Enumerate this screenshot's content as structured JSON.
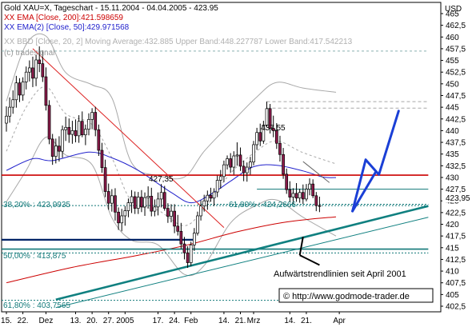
{
  "chart_data": {
    "type": "candlestick",
    "header": {
      "title": "Gold XAU=X, Tageschart - 15.11.2004 - 04.04.2005 - 423.95",
      "ema200": "XX EMA [Close, 200]:421.598659",
      "ema50": "XX EMA(2) [Close, 50]:429.971568",
      "bbd": "XX BBD [Close, 20, 2] Moving Average:432.885  Upper Band:448.227787  Lower Band:417.542213",
      "watermark": "(c) tradesignal"
    },
    "y_axis": {
      "unit": "USD",
      "min": 402.5,
      "max": 465,
      "ticks": [
        402.5,
        405,
        407.5,
        410,
        412.5,
        415,
        417.5,
        420,
        422.5,
        425,
        427.5,
        430,
        432.5,
        435,
        437.5,
        440,
        442.5,
        445,
        447.5,
        450,
        452.5,
        455,
        457.5,
        460,
        462.5,
        465
      ],
      "tick_labels": [
        "402,5",
        "405",
        "407,5",
        "410",
        "412,5",
        "415",
        "417,5",
        "420",
        "422,5",
        "425",
        "427,5",
        "430",
        "432,5",
        "435",
        "437,5",
        "440",
        "442,5",
        "445",
        "447,5",
        "450",
        "452,5",
        "455",
        "457,5",
        "460",
        "462,5",
        "465"
      ],
      "last_price": 423.95,
      "last_price_label": "423,95"
    },
    "x_axis": {
      "labels": [
        "15.",
        "22.",
        "Dez",
        "13.",
        "20.",
        "27.",
        "2005",
        "17.",
        "24.",
        "Feb",
        "14.",
        "21.",
        "Mrz",
        "14.",
        "21.",
        "Apr"
      ],
      "label_bar_index": [
        0,
        5,
        12,
        21,
        26,
        31,
        36,
        46,
        51,
        56,
        66,
        71,
        75,
        86,
        91,
        101
      ]
    },
    "candles": [
      {
        "o": 441.6,
        "h": 445.2,
        "l": 439.8,
        "c": 443.1
      },
      {
        "o": 443.1,
        "h": 447.1,
        "l": 441.7,
        "c": 445.0
      },
      {
        "o": 445.0,
        "h": 448.6,
        "l": 443.6,
        "c": 446.6
      },
      {
        "o": 446.6,
        "h": 451.7,
        "l": 444.9,
        "c": 450.2
      },
      {
        "o": 450.2,
        "h": 451.2,
        "l": 446.1,
        "c": 447.6
      },
      {
        "o": 447.6,
        "h": 451.4,
        "l": 446.4,
        "c": 450.4
      },
      {
        "o": 450.4,
        "h": 453.7,
        "l": 448.8,
        "c": 452.5
      },
      {
        "o": 452.5,
        "h": 455.0,
        "l": 450.5,
        "c": 453.4
      },
      {
        "o": 453.4,
        "h": 455.8,
        "l": 449.3,
        "c": 451.2
      },
      {
        "o": 451.2,
        "h": 456.2,
        "l": 449.5,
        "c": 455.1
      },
      {
        "o": 455.1,
        "h": 458.0,
        "l": 452.5,
        "c": 454.3
      },
      {
        "o": 454.3,
        "h": 457.1,
        "l": 450.4,
        "c": 451.5
      },
      {
        "o": 451.5,
        "h": 453.5,
        "l": 444.3,
        "c": 445.4
      },
      {
        "o": 445.4,
        "h": 446.5,
        "l": 437.1,
        "c": 438.2
      },
      {
        "o": 438.2,
        "h": 439.3,
        "l": 432.7,
        "c": 434.5
      },
      {
        "o": 434.5,
        "h": 438.3,
        "l": 433.0,
        "c": 436.7
      },
      {
        "o": 436.7,
        "h": 438.8,
        "l": 433.4,
        "c": 435.6
      },
      {
        "o": 435.6,
        "h": 441.1,
        "l": 434.2,
        "c": 440.2
      },
      {
        "o": 440.2,
        "h": 443.0,
        "l": 437.8,
        "c": 440.7
      },
      {
        "o": 440.7,
        "h": 442.6,
        "l": 437.4,
        "c": 439.2
      },
      {
        "o": 439.2,
        "h": 442.1,
        "l": 437.2,
        "c": 440.0
      },
      {
        "o": 440.0,
        "h": 442.4,
        "l": 437.5,
        "c": 438.9
      },
      {
        "o": 438.9,
        "h": 443.3,
        "l": 437.4,
        "c": 442.0
      },
      {
        "o": 442.0,
        "h": 444.1,
        "l": 438.6,
        "c": 439.1
      },
      {
        "o": 439.1,
        "h": 441.3,
        "l": 436.9,
        "c": 440.3
      },
      {
        "o": 440.3,
        "h": 443.7,
        "l": 439.0,
        "c": 442.4
      },
      {
        "o": 442.4,
        "h": 444.8,
        "l": 440.3,
        "c": 443.9
      },
      {
        "o": 443.9,
        "h": 445.1,
        "l": 438.8,
        "c": 440.2
      },
      {
        "o": 440.2,
        "h": 441.3,
        "l": 434.6,
        "c": 435.8
      },
      {
        "o": 435.8,
        "h": 437.4,
        "l": 431.0,
        "c": 432.1
      },
      {
        "o": 432.1,
        "h": 433.8,
        "l": 425.8,
        "c": 427.0
      },
      {
        "o": 427.0,
        "h": 428.7,
        "l": 423.1,
        "c": 424.5
      },
      {
        "o": 424.5,
        "h": 427.5,
        "l": 422.7,
        "c": 426.1
      },
      {
        "o": 426.1,
        "h": 427.7,
        "l": 420.8,
        "c": 422.6
      },
      {
        "o": 422.6,
        "h": 423.6,
        "l": 418.8,
        "c": 420.3
      },
      {
        "o": 420.3,
        "h": 423.3,
        "l": 418.5,
        "c": 421.8
      },
      {
        "o": 421.8,
        "h": 423.9,
        "l": 419.7,
        "c": 422.9
      },
      {
        "o": 422.9,
        "h": 425.5,
        "l": 421.5,
        "c": 424.6
      },
      {
        "o": 424.6,
        "h": 427.3,
        "l": 422.4,
        "c": 425.9
      },
      {
        "o": 425.9,
        "h": 427.0,
        "l": 422.2,
        "c": 423.4
      },
      {
        "o": 423.4,
        "h": 426.9,
        "l": 422.2,
        "c": 425.8
      },
      {
        "o": 425.8,
        "h": 427.3,
        "l": 422.6,
        "c": 423.7
      },
      {
        "o": 423.7,
        "h": 426.8,
        "l": 421.8,
        "c": 425.7
      },
      {
        "o": 425.7,
        "h": 428.1,
        "l": 423.4,
        "c": 426.0
      },
      {
        "o": 426.0,
        "h": 427.8,
        "l": 421.7,
        "c": 422.8
      },
      {
        "o": 422.8,
        "h": 425.3,
        "l": 421.7,
        "c": 423.7
      },
      {
        "o": 423.7,
        "h": 426.8,
        "l": 421.9,
        "c": 425.4
      },
      {
        "o": 425.4,
        "h": 428.6,
        "l": 423.6,
        "c": 426.8
      },
      {
        "o": 426.8,
        "h": 428.2,
        "l": 422.9,
        "c": 423.4
      },
      {
        "o": 423.4,
        "h": 424.5,
        "l": 420.3,
        "c": 421.7
      },
      {
        "o": 421.7,
        "h": 424.3,
        "l": 420.4,
        "c": 422.8
      },
      {
        "o": 422.8,
        "h": 424.3,
        "l": 418.1,
        "c": 419.6
      },
      {
        "o": 419.6,
        "h": 422.0,
        "l": 417.6,
        "c": 418.5
      },
      {
        "o": 418.5,
        "h": 420.3,
        "l": 414.7,
        "c": 415.8
      },
      {
        "o": 415.8,
        "h": 417.3,
        "l": 412.5,
        "c": 413.9
      },
      {
        "o": 413.9,
        "h": 415.3,
        "l": 410.7,
        "c": 411.8
      },
      {
        "o": 411.8,
        "h": 416.3,
        "l": 411.1,
        "c": 415.6
      },
      {
        "o": 415.6,
        "h": 419.2,
        "l": 414.3,
        "c": 418.1
      },
      {
        "o": 418.1,
        "h": 422.7,
        "l": 417.6,
        "c": 421.8
      },
      {
        "o": 421.8,
        "h": 425.1,
        "l": 420.8,
        "c": 423.9
      },
      {
        "o": 423.9,
        "h": 426.3,
        "l": 422.7,
        "c": 425.0
      },
      {
        "o": 425.0,
        "h": 427.2,
        "l": 423.1,
        "c": 426.2
      },
      {
        "o": 426.2,
        "h": 427.8,
        "l": 424.8,
        "c": 425.6
      },
      {
        "o": 425.6,
        "h": 427.7,
        "l": 423.9,
        "c": 426.9
      },
      {
        "o": 426.9,
        "h": 430.4,
        "l": 425.8,
        "c": 429.4
      },
      {
        "o": 429.4,
        "h": 431.6,
        "l": 427.6,
        "c": 430.2
      },
      {
        "o": 430.2,
        "h": 433.6,
        "l": 429.0,
        "c": 432.7
      },
      {
        "o": 432.7,
        "h": 434.7,
        "l": 431.7,
        "c": 434.0
      },
      {
        "o": 434.0,
        "h": 435.2,
        "l": 431.0,
        "c": 432.2
      },
      {
        "o": 432.2,
        "h": 435.6,
        "l": 430.6,
        "c": 434.6
      },
      {
        "o": 434.6,
        "h": 437.5,
        "l": 432.5,
        "c": 434.8
      },
      {
        "o": 434.8,
        "h": 436.4,
        "l": 431.4,
        "c": 432.4
      },
      {
        "o": 432.4,
        "h": 433.6,
        "l": 429.2,
        "c": 431.0
      },
      {
        "o": 431.0,
        "h": 433.2,
        "l": 429.1,
        "c": 432.2
      },
      {
        "o": 432.2,
        "h": 434.4,
        "l": 430.6,
        "c": 433.3
      },
      {
        "o": 433.3,
        "h": 437.8,
        "l": 432.6,
        "c": 437.0
      },
      {
        "o": 437.0,
        "h": 440.6,
        "l": 435.9,
        "c": 439.6
      },
      {
        "o": 439.6,
        "h": 441.5,
        "l": 436.7,
        "c": 437.8
      },
      {
        "o": 437.8,
        "h": 442.1,
        "l": 437.2,
        "c": 441.2
      },
      {
        "o": 441.2,
        "h": 446.2,
        "l": 440.7,
        "c": 444.7
      },
      {
        "o": 444.7,
        "h": 445.7,
        "l": 439.4,
        "c": 440.5
      },
      {
        "o": 440.5,
        "h": 443.2,
        "l": 438.6,
        "c": 440.0
      },
      {
        "o": 440.0,
        "h": 441.6,
        "l": 436.1,
        "c": 437.3
      },
      {
        "o": 437.3,
        "h": 438.9,
        "l": 433.4,
        "c": 434.9
      },
      {
        "o": 434.9,
        "h": 436.3,
        "l": 429.7,
        "c": 430.7
      },
      {
        "o": 430.7,
        "h": 431.9,
        "l": 426.5,
        "c": 427.4
      },
      {
        "o": 427.4,
        "h": 429.2,
        "l": 424.7,
        "c": 425.8
      },
      {
        "o": 425.8,
        "h": 427.7,
        "l": 424.3,
        "c": 426.6
      },
      {
        "o": 426.6,
        "h": 428.8,
        "l": 424.8,
        "c": 425.6
      },
      {
        "o": 425.6,
        "h": 427.6,
        "l": 424.6,
        "c": 426.8
      },
      {
        "o": 426.8,
        "h": 428.5,
        "l": 424.3,
        "c": 425.4
      },
      {
        "o": 425.4,
        "h": 428.6,
        "l": 424.9,
        "c": 427.5
      },
      {
        "o": 427.5,
        "h": 429.8,
        "l": 426.2,
        "c": 428.6
      },
      {
        "o": 428.6,
        "h": 429.6,
        "l": 425.6,
        "c": 426.1
      },
      {
        "o": 426.1,
        "h": 426.9,
        "l": 422.8,
        "c": 424.0
      },
      {
        "o": 424.0,
        "h": 425.9,
        "l": 422.6,
        "c": 423.95
      }
    ],
    "indicators": {
      "ema50_color": "#2222cc",
      "ema200_color": "#cc0000",
      "bbd_color": "#a8a8a8",
      "ema50": [
        [
          0,
          431.5
        ],
        [
          8,
          434.0
        ],
        [
          14,
          433.6
        ],
        [
          25,
          435.4
        ],
        [
          32,
          434.2
        ],
        [
          40,
          431.5
        ],
        [
          50,
          426.8
        ],
        [
          56,
          424.6
        ],
        [
          62,
          426.4
        ],
        [
          68,
          429.2
        ],
        [
          75,
          432.3
        ],
        [
          82,
          432.6
        ],
        [
          90,
          431.4
        ],
        [
          96,
          430.1
        ],
        [
          100,
          429.97
        ]
      ],
      "ema200": [
        [
          0,
          407.5
        ],
        [
          20,
          410.8
        ],
        [
          40,
          413.4
        ],
        [
          55,
          415.6
        ],
        [
          70,
          418.4
        ],
        [
          85,
          420.5
        ],
        [
          100,
          421.6
        ]
      ],
      "bbd_upper": [
        [
          0,
          446.3
        ],
        [
          6,
          458.4
        ],
        [
          12,
          460.2
        ],
        [
          18,
          452.4
        ],
        [
          26,
          449.8
        ],
        [
          32,
          447.0
        ],
        [
          38,
          433.1
        ],
        [
          46,
          430.4
        ],
        [
          54,
          430.1
        ],
        [
          60,
          435.6
        ],
        [
          68,
          441.5
        ],
        [
          76,
          447.2
        ],
        [
          82,
          450.3
        ],
        [
          90,
          449.1
        ],
        [
          100,
          448.2
        ]
      ],
      "bbd_lower": [
        [
          0,
          424.8
        ],
        [
          6,
          431.5
        ],
        [
          12,
          438.6
        ],
        [
          18,
          434.8
        ],
        [
          26,
          432.7
        ],
        [
          32,
          421.4
        ],
        [
          38,
          416.6
        ],
        [
          46,
          415.6
        ],
        [
          54,
          409.3
        ],
        [
          60,
          411.2
        ],
        [
          68,
          420.3
        ],
        [
          76,
          424.1
        ],
        [
          82,
          425.2
        ],
        [
          90,
          421.5
        ],
        [
          100,
          417.5
        ]
      ],
      "bbd_mid": [
        [
          0,
          435.6
        ],
        [
          6,
          445.0
        ],
        [
          12,
          449.4
        ],
        [
          18,
          443.6
        ],
        [
          26,
          441.3
        ],
        [
          32,
          434.2
        ],
        [
          38,
          424.9
        ],
        [
          46,
          423.0
        ],
        [
          54,
          419.7
        ],
        [
          60,
          423.4
        ],
        [
          68,
          430.9
        ],
        [
          76,
          435.7
        ],
        [
          82,
          437.8
        ],
        [
          90,
          435.3
        ],
        [
          100,
          432.9
        ]
      ]
    },
    "horizontal_lines": [
      {
        "name": "red-resistance-line",
        "y": 430.5,
        "x_from": -3,
        "x_to": 128,
        "color": "#cc0000",
        "width": 1.6,
        "dash": ""
      },
      {
        "name": "navy-support-line",
        "y": 416.7,
        "x_from": -3,
        "x_to": 57,
        "color": "#002266",
        "width": 2.2,
        "dash": ""
      },
      {
        "name": "fib-3820-line",
        "y": 423.99,
        "x_from": -3,
        "x_to": 128,
        "color": "#107878",
        "width": 1,
        "dash": "2,2"
      },
      {
        "name": "fib-5000-line",
        "y": 413.875,
        "x_from": -3,
        "x_to": 128,
        "color": "#107878",
        "width": 1,
        "dash": "2,2"
      },
      {
        "name": "fib-6180-bottom-line",
        "y": 403.76,
        "x_from": -3,
        "x_to": 128,
        "color": "#107878",
        "width": 1,
        "dash": "2,2"
      },
      {
        "name": "fib-6180-mid-line",
        "y": 424.27,
        "x_from": 58,
        "x_to": 128,
        "color": "#107878",
        "width": 1,
        "dash": "2,2"
      },
      {
        "name": "teal-horizontal-line",
        "y": 414.7,
        "x_from": -3,
        "x_to": 128,
        "color": "#107878",
        "width": 1.6,
        "dash": ""
      },
      {
        "name": "grey-top-dashed-line",
        "y": 457.0,
        "x_from": -3,
        "x_to": 128,
        "color": "#8ab0b0",
        "width": 1,
        "dash": "3,3"
      },
      {
        "name": "teal-level-4275-line",
        "y": 427.5,
        "x_from": 76,
        "x_to": 128,
        "color": "#107878",
        "width": 1,
        "dash": ""
      },
      {
        "name": "grey-dashed-446-line",
        "y": 446.2,
        "x_from": 79,
        "x_to": 128,
        "color": "#a8a8a8",
        "width": 1,
        "dash": "4,3"
      },
      {
        "name": "grey-dashed-445-line",
        "y": 444.8,
        "x_from": 79,
        "x_to": 128,
        "color": "#a8a8a8",
        "width": 1,
        "dash": "4,3"
      }
    ],
    "trend_lines": [
      {
        "name": "red-downtrend-line",
        "p1": [
          8,
          457.5
        ],
        "p2": [
          66,
          419.3
        ],
        "color": "#dd2222",
        "width": 1
      },
      {
        "name": "teal-uptrend-line",
        "p1": [
          15,
          403.9
        ],
        "p2": [
          128,
          423.9
        ],
        "color": "#108080",
        "width": 2.6
      },
      {
        "name": "teal-lower-trend-line",
        "p1": [
          15,
          402.2
        ],
        "p2": [
          128,
          421.5
        ],
        "color": "#108080",
        "width": 1
      },
      {
        "name": "black-annotation-marker",
        "p1": [
          90,
          417.3
        ],
        "p2": [
          89,
          413.4
        ],
        "color": "#000000",
        "width": 2
      },
      {
        "name": "black-annotation-pointer",
        "p1": [
          89,
          413.4
        ],
        "p2": [
          95,
          411.3
        ],
        "color": "#000000",
        "width": 2
      },
      {
        "name": "gray-dotted-line",
        "p1": [
          90,
          433.4
        ],
        "p2": [
          98,
          428.9
        ],
        "color": "#666666",
        "width": 1
      }
    ],
    "forecast": {
      "name": "blue-forecast-arrow",
      "color": "#1a3fd6",
      "points": [
        [
          105,
          422.8
        ],
        [
          109,
          433.8
        ],
        [
          113,
          430.6
        ],
        [
          119,
          444.2
        ]
      ],
      "branch": [
        [
          105,
          422.8
        ],
        [
          112,
          431.1
        ]
      ]
    },
    "annotations": {
      "label_43755": "437,55",
      "label_42735": "427,35",
      "fib_3820": "38,20% : 423,9935",
      "fib_6180_mid": "61,80% : 424,2666",
      "fib_5000": "50,00% : 413,875",
      "fib_6180_bottom": "61,80% : 403,7565",
      "trend_caption": "Aufwärtstrendlinien seit April 2001",
      "website": "© http://www.godmode-trader.de"
    }
  }
}
